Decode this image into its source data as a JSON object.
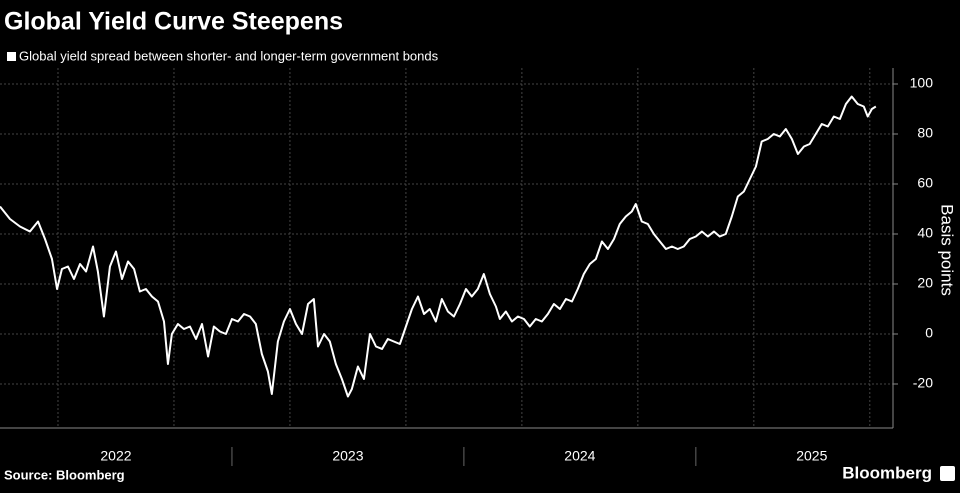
{
  "chart_data": {
    "type": "line",
    "title": "Global Yield Curve Steepens",
    "subtitle": "Global yield spread between shorter- and longer-term government bonds",
    "y_axis_label": "Basis points",
    "source": "Source: Bloomberg",
    "brand": "Bloomberg",
    "xlim": [
      2022,
      2025.85
    ],
    "ylim": [
      -37.6,
      106.4
    ],
    "yticks": [
      -20,
      0,
      20,
      40,
      60,
      80,
      100
    ],
    "xticks": [
      {
        "value": 2022.5,
        "label": "2022"
      },
      {
        "value": 2023.5,
        "label": "2023"
      },
      {
        "value": 2024.5,
        "label": "2024"
      },
      {
        "value": 2025.5,
        "label": "2025"
      }
    ],
    "xgrid": [
      2022.25,
      2022.75,
      2023.25,
      2023.75,
      2024.25,
      2024.75,
      2025.25,
      2025.75
    ],
    "year_boundaries": [
      2023,
      2024,
      2025
    ],
    "grid": true,
    "axis_side": "right",
    "series": [
      {
        "name": "Global yield spread between shorter- and longer-term government bonds",
        "color": "#ffffff",
        "x": [
          2022.0,
          2022.043,
          2022.086,
          2022.129,
          2022.164,
          2022.194,
          2022.224,
          2022.246,
          2022.267,
          2022.293,
          2022.319,
          2022.345,
          2022.371,
          2022.401,
          2022.422,
          2022.448,
          2022.474,
          2022.5,
          2022.526,
          2022.552,
          2022.578,
          2022.603,
          2022.629,
          2022.655,
          2022.681,
          2022.707,
          2022.724,
          2022.741,
          2022.767,
          2022.793,
          2022.819,
          2022.845,
          2022.871,
          2022.897,
          2022.922,
          2022.948,
          2022.974,
          2023.0,
          2023.026,
          2023.052,
          2023.078,
          2023.103,
          2023.129,
          2023.155,
          2023.172,
          2023.198,
          2023.224,
          2023.25,
          2023.276,
          2023.302,
          2023.328,
          2023.353,
          2023.371,
          2023.397,
          2023.422,
          2023.448,
          2023.474,
          2023.5,
          2023.517,
          2023.543,
          2023.569,
          2023.595,
          2023.621,
          2023.647,
          2023.672,
          2023.698,
          2023.724,
          2023.75,
          2023.776,
          2023.802,
          2023.828,
          2023.853,
          2023.879,
          2023.905,
          2023.931,
          2023.957,
          2023.983,
          2024.009,
          2024.034,
          2024.06,
          2024.086,
          2024.112,
          2024.138,
          2024.155,
          2024.181,
          2024.207,
          2024.233,
          2024.259,
          2024.284,
          2024.31,
          2024.336,
          2024.362,
          2024.388,
          2024.414,
          2024.44,
          2024.466,
          2024.491,
          2024.517,
          2024.543,
          2024.569,
          2024.595,
          2024.621,
          2024.647,
          2024.672,
          2024.698,
          2024.724,
          2024.741,
          2024.767,
          2024.793,
          2024.819,
          2024.845,
          2024.871,
          2024.897,
          2024.922,
          2024.948,
          2024.974,
          2025.0,
          2025.026,
          2025.052,
          2025.078,
          2025.103,
          2025.129,
          2025.155,
          2025.181,
          2025.207,
          2025.233,
          2025.259,
          2025.284,
          2025.31,
          2025.336,
          2025.362,
          2025.388,
          2025.414,
          2025.44,
          2025.466,
          2025.491,
          2025.517,
          2025.543,
          2025.569,
          2025.595,
          2025.621,
          2025.647,
          2025.672,
          2025.698,
          2025.724,
          2025.741,
          2025.759,
          2025.776
        ],
        "values": [
          51,
          46,
          43,
          41,
          45,
          38,
          30,
          18,
          26,
          27,
          22,
          28,
          25,
          35,
          25,
          7,
          27,
          33,
          22,
          29,
          26,
          17,
          18,
          15,
          13,
          5,
          -12,
          0,
          4,
          2,
          3,
          -2,
          4,
          -9,
          3,
          1,
          0,
          6,
          5,
          8,
          7,
          4,
          -8,
          -15,
          -24,
          -3,
          5,
          10,
          4,
          0,
          12,
          14,
          -5,
          0,
          -3,
          -12,
          -18,
          -25,
          -22,
          -13,
          -18,
          0,
          -5,
          -6,
          -2,
          -3,
          -4,
          3,
          10,
          15,
          8,
          10,
          5,
          14,
          9,
          7,
          12,
          18,
          15,
          18,
          24,
          16,
          11,
          6,
          9,
          5,
          7,
          6,
          3,
          6,
          5,
          8,
          12,
          10,
          14,
          13,
          18,
          24,
          28,
          30,
          37,
          34,
          38,
          44,
          47,
          49,
          52,
          45,
          44,
          40,
          37,
          34,
          35,
          34,
          35,
          38,
          39,
          41,
          39,
          41,
          39,
          40,
          47,
          55,
          57,
          62,
          67,
          77,
          78,
          80,
          79,
          82,
          78,
          72,
          75,
          76,
          80,
          84,
          83,
          87,
          86,
          92,
          95,
          92,
          91,
          87,
          90,
          91
        ]
      }
    ]
  }
}
